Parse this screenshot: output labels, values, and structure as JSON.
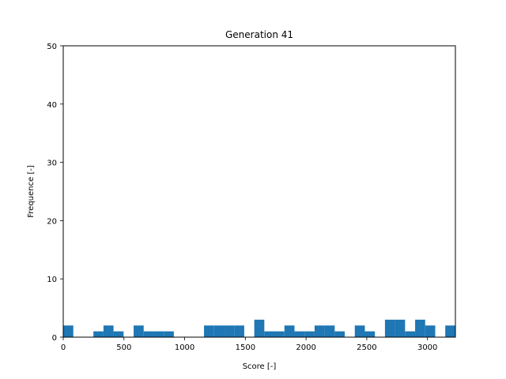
{
  "chart_data": {
    "type": "bar",
    "title": "Generation 41",
    "xlabel": "Score [-]",
    "ylabel": "Frequence [-]",
    "xlim": [
      0,
      3230
    ],
    "ylim": [
      0,
      50
    ],
    "xticks": [
      0,
      500,
      1000,
      1500,
      2000,
      2500,
      3000
    ],
    "yticks": [
      0,
      10,
      20,
      30,
      40,
      50
    ],
    "grid": false,
    "bar_color": "#1f77b4",
    "bin_width": 82.8,
    "bins": [
      {
        "x0": 0,
        "x1": 82.8,
        "count": 2
      },
      {
        "x0": 248.5,
        "x1": 331.3,
        "count": 1
      },
      {
        "x0": 331.3,
        "x1": 414.1,
        "count": 2
      },
      {
        "x0": 414.1,
        "x1": 496.9,
        "count": 1
      },
      {
        "x0": 579.7,
        "x1": 662.5,
        "count": 2
      },
      {
        "x0": 662.5,
        "x1": 745.3,
        "count": 1
      },
      {
        "x0": 745.3,
        "x1": 828.1,
        "count": 1
      },
      {
        "x0": 828.1,
        "x1": 910.9,
        "count": 1
      },
      {
        "x0": 1159.4,
        "x1": 1242.2,
        "count": 2
      },
      {
        "x0": 1242.2,
        "x1": 1325.0,
        "count": 2
      },
      {
        "x0": 1325.0,
        "x1": 1407.8,
        "count": 2
      },
      {
        "x0": 1407.8,
        "x1": 1490.6,
        "count": 2
      },
      {
        "x0": 1573.4,
        "x1": 1656.2,
        "count": 3
      },
      {
        "x0": 1656.2,
        "x1": 1739.0,
        "count": 1
      },
      {
        "x0": 1739.0,
        "x1": 1821.8,
        "count": 1
      },
      {
        "x0": 1821.8,
        "x1": 1904.6,
        "count": 2
      },
      {
        "x0": 1904.6,
        "x1": 1987.4,
        "count": 1
      },
      {
        "x0": 1987.4,
        "x1": 2070.2,
        "count": 1
      },
      {
        "x0": 2070.2,
        "x1": 2153.0,
        "count": 2
      },
      {
        "x0": 2153.0,
        "x1": 2235.8,
        "count": 2
      },
      {
        "x0": 2235.8,
        "x1": 2318.6,
        "count": 1
      },
      {
        "x0": 2401.4,
        "x1": 2484.2,
        "count": 2
      },
      {
        "x0": 2484.2,
        "x1": 2567.0,
        "count": 1
      },
      {
        "x0": 2649.8,
        "x1": 2732.6,
        "count": 3
      },
      {
        "x0": 2732.6,
        "x1": 2815.4,
        "count": 3
      },
      {
        "x0": 2815.4,
        "x1": 2898.2,
        "count": 1
      },
      {
        "x0": 2898.2,
        "x1": 2981.0,
        "count": 3
      },
      {
        "x0": 2981.0,
        "x1": 3063.8,
        "count": 2
      },
      {
        "x0": 3146.6,
        "x1": 3229.4,
        "count": 2
      }
    ]
  }
}
